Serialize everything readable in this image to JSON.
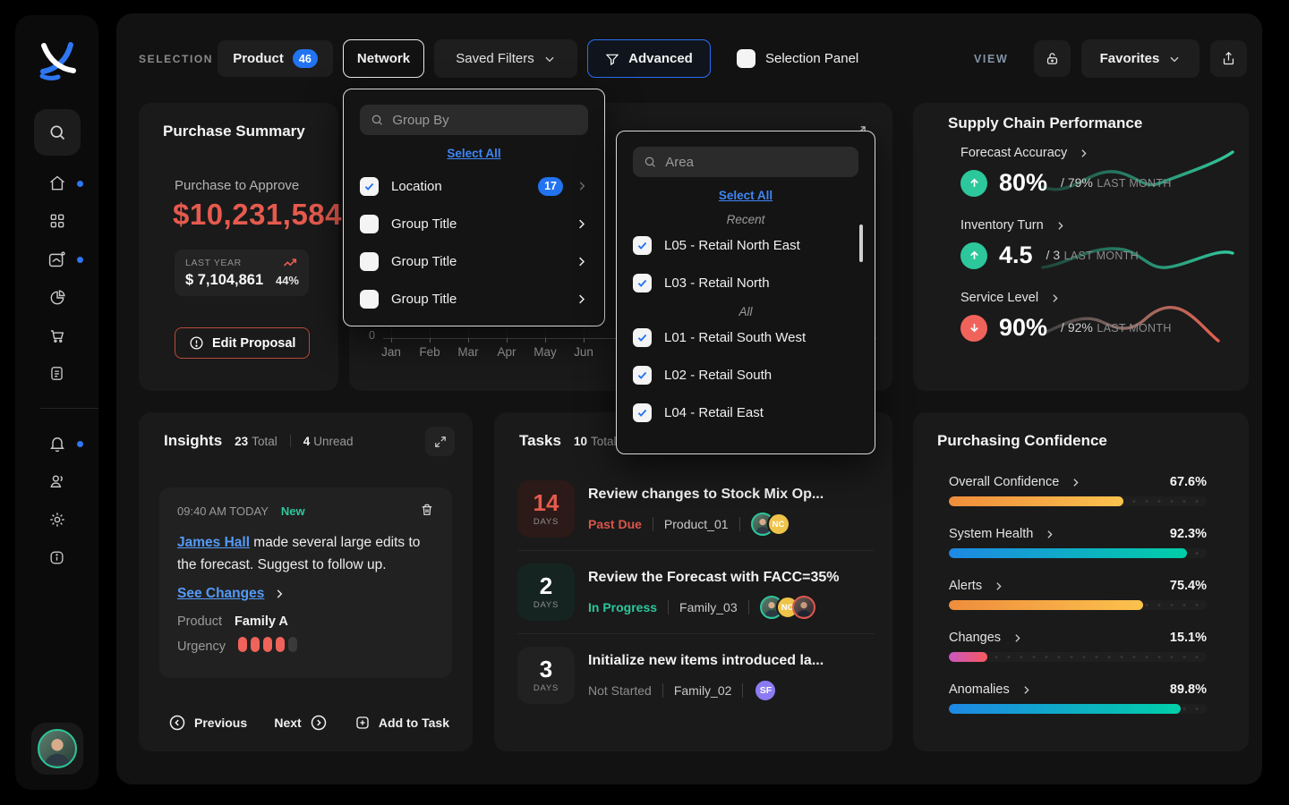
{
  "topbar": {
    "selection_label": "SELECTION",
    "product_label": "Product",
    "product_badge": "46",
    "network_label": "Network",
    "saved_filters_label": "Saved Filters",
    "advanced_label": "Advanced",
    "selection_panel_label": "Selection Panel",
    "view_label": "VIEW",
    "favorites_label": "Favorites"
  },
  "purchase_summary": {
    "title": "Purchase Summary",
    "approve_label": "Purchase to Approve",
    "approve_amount": "$10,231,584",
    "last_year_label": "LAST YEAR",
    "last_year_amount": "$ 7,104,861",
    "last_year_change": "44%",
    "edit_proposal_label": "Edit Proposal"
  },
  "forecast_chart": {
    "y_origin_label": "0",
    "x_ticks": [
      "Jan",
      "Feb",
      "Mar",
      "Apr",
      "May",
      "Jun"
    ]
  },
  "group_by_dropdown": {
    "search_placeholder": "Group By",
    "select_all_label": "Select All",
    "items": [
      {
        "label": "Location",
        "checked": true,
        "badge": "17"
      },
      {
        "label": "Group Title",
        "checked": false
      },
      {
        "label": "Group Title",
        "checked": false
      },
      {
        "label": "Group Title",
        "checked": false
      }
    ]
  },
  "area_dropdown": {
    "search_placeholder": "Area",
    "select_all_label": "Select All",
    "recent_label": "Recent",
    "all_label": "All",
    "recent_items": [
      {
        "label": "L05 - Retail North East",
        "checked": true
      },
      {
        "label": "L03 - Retail North",
        "checked": true
      }
    ],
    "all_items": [
      {
        "label": "L01 - Retail South West",
        "checked": true
      },
      {
        "label": "L02 - Retail South",
        "checked": true
      },
      {
        "label": "L04 - Retail East",
        "checked": true
      }
    ]
  },
  "supply_chain": {
    "title": "Supply Chain Performance",
    "metrics": [
      {
        "label": "Forecast Accuracy",
        "value": "80%",
        "compare_value": "/ 79%",
        "compare_label": "LAST MONTH",
        "trend": "up"
      },
      {
        "label": "Inventory Turn",
        "value": "4.5",
        "compare_value": "/ 3",
        "compare_label": "LAST MONTH",
        "trend": "up"
      },
      {
        "label": "Service Level",
        "value": "90%",
        "compare_value": "/ 92%",
        "compare_label": "LAST MONTH",
        "trend": "down"
      }
    ]
  },
  "insights": {
    "title": "Insights",
    "total_count": "23",
    "total_label": "Total",
    "unread_count": "4",
    "unread_label": "Unread",
    "current": {
      "timestamp": "09:40 AM TODAY",
      "new_badge": "New",
      "author": "James Hall",
      "message": " made several large edits to the forecast. Suggest to follow up.",
      "link_label": "See Changes",
      "product_label": "Product",
      "product_value": "Family A",
      "urgency_label": "Urgency",
      "urgency_level": 4,
      "urgency_max": 5
    },
    "previous_label": "Previous",
    "next_label": "Next",
    "add_to_task_label": "Add to Task"
  },
  "tasks": {
    "title": "Tasks",
    "total_count": "10",
    "total_label": "Total",
    "items": [
      {
        "days": "14",
        "days_label": "DAYS",
        "title": "Review changes to Stock Mix Op...",
        "status": "Past Due",
        "scope": "Product_01",
        "avatars": [
          "photo",
          "NC"
        ]
      },
      {
        "days": "2",
        "days_label": "DAYS",
        "title": "Review the Forecast with FACC=35%",
        "status": "In Progress",
        "scope": "Family_03",
        "avatars": [
          "photo",
          "NC",
          "photo"
        ]
      },
      {
        "days": "3",
        "days_label": "DAYS",
        "title": "Initialize new items introduced la...",
        "status": "Not Started",
        "scope": "Family_02",
        "avatars": [
          "SF"
        ]
      }
    ]
  },
  "purchasing_confidence": {
    "title": "Purchasing Confidence",
    "metrics": [
      {
        "label": "Overall Confidence",
        "value": "67.6%",
        "pct": 67.6,
        "tone": "orange"
      },
      {
        "label": "System Health",
        "value": "92.3%",
        "pct": 92.3,
        "tone": "blue"
      },
      {
        "label": "Alerts",
        "value": "75.4%",
        "pct": 75.4,
        "tone": "orange"
      },
      {
        "label": "Changes",
        "value": "15.1%",
        "pct": 15.1,
        "tone": "pink"
      },
      {
        "label": "Anomalies",
        "value": "89.8%",
        "pct": 89.8,
        "tone": "blue"
      }
    ]
  },
  "colors": {
    "accent_blue": "#2273f0",
    "amount_red": "#e65a4e",
    "positive_green": "#2cc79b",
    "negative_red": "#f0635a",
    "link_blue": "#549af7",
    "bar_orange": "#ef8d3c,#fbc24d",
    "bar_blue": "#1e88e5,#00cfa8",
    "bar_pink": "#c957c0,#f85a5f"
  }
}
